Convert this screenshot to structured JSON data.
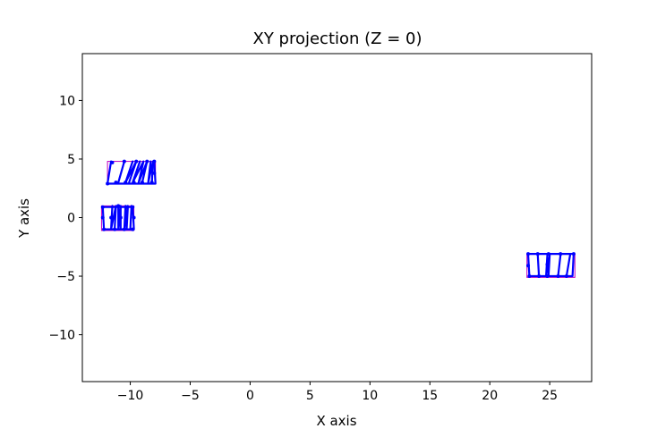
{
  "chart_data": {
    "type": "scatter",
    "title": "XY projection (Z = 0)",
    "xlabel": "X axis",
    "ylabel": "Y axis",
    "xlim": [
      -14,
      28.5
    ],
    "ylim": [
      -14,
      14
    ],
    "xticks": [
      -10,
      -5,
      0,
      5,
      10,
      15,
      20,
      25
    ],
    "yticks": [
      -10,
      -5,
      0,
      5,
      10
    ],
    "grid": false,
    "colors": {
      "points": "#0000ff",
      "box": "#bf00bf",
      "axes": "#000000"
    },
    "boxes": [
      {
        "x0": -11.9,
        "x1": -7.9,
        "y0": 2.9,
        "y1": 4.8
      },
      {
        "x0": -12.4,
        "x1": -9.7,
        "y0": -1.1,
        "y1": 1.0
      },
      {
        "x0": 23.1,
        "x1": 27.1,
        "y0": -5.1,
        "y1": -3.1
      }
    ],
    "strokes": [
      {
        "x": [
          -11.6,
          -11.9,
          -7.9,
          -8.0
        ],
        "y": [
          4.8,
          2.9,
          2.9,
          4.8
        ]
      },
      {
        "x": [
          -10.5,
          -11.0
        ],
        "y": [
          4.8,
          3.0
        ]
      },
      {
        "x": [
          -9.8,
          -10.4,
          -9.5,
          -10.1
        ],
        "y": [
          4.8,
          3.0,
          4.8,
          3.0
        ]
      },
      {
        "x": [
          -9.2,
          -9.8,
          -8.9,
          -9.3,
          -8.6,
          -9.0
        ],
        "y": [
          4.8,
          3.0,
          4.8,
          3.0,
          4.8,
          3.0
        ]
      },
      {
        "x": [
          -8.3,
          -8.5,
          -8.1,
          -8.2
        ],
        "y": [
          4.8,
          3.0,
          4.8,
          3.0
        ]
      },
      {
        "x": [
          -12.3,
          -12.2,
          -9.7,
          -9.8,
          -12.3
        ],
        "y": [
          0.9,
          -1.0,
          -1.0,
          0.9,
          0.9
        ]
      },
      {
        "x": [
          -11.5,
          -11.6,
          -11.2,
          -11.3
        ],
        "y": [
          1.0,
          -1.0,
          1.0,
          -1.0
        ]
      },
      {
        "x": [
          -11.0,
          -11.0,
          -10.8,
          -10.8
        ],
        "y": [
          1.0,
          -1.0,
          1.0,
          -1.0
        ]
      },
      {
        "x": [
          -10.4,
          -10.5,
          -10.2,
          -10.3
        ],
        "y": [
          1.0,
          -1.0,
          1.0,
          -1.0
        ]
      },
      {
        "x": [
          -9.9,
          -10.0
        ],
        "y": [
          1.0,
          -1.0
        ]
      },
      {
        "x": [
          23.2,
          27.0,
          26.9,
          23.3,
          23.2
        ],
        "y": [
          -3.1,
          -3.1,
          -5.0,
          -5.0,
          -3.1
        ]
      },
      {
        "x": [
          24.0,
          24.1
        ],
        "y": [
          -3.2,
          -5.0
        ]
      },
      {
        "x": [
          24.8,
          24.7,
          25.0,
          24.9
        ],
        "y": [
          -3.2,
          -5.0,
          -3.2,
          -5.0
        ]
      },
      {
        "x": [
          25.9,
          25.7
        ],
        "y": [
          -3.2,
          -5.0
        ]
      },
      {
        "x": [
          26.7,
          26.4
        ],
        "y": [
          -3.2,
          -5.0
        ]
      }
    ],
    "points": [
      {
        "x": -11.9,
        "y": 2.9
      },
      {
        "x": -11.2,
        "y": 3.0
      },
      {
        "x": -10.4,
        "y": 3.0
      },
      {
        "x": -9.7,
        "y": 3.0
      },
      {
        "x": -9.0,
        "y": 3.0
      },
      {
        "x": -8.2,
        "y": 3.0
      },
      {
        "x": -11.5,
        "y": 4.7
      },
      {
        "x": -10.5,
        "y": 4.8
      },
      {
        "x": -9.5,
        "y": 4.8
      },
      {
        "x": -8.6,
        "y": 4.8
      },
      {
        "x": -8.0,
        "y": 4.8
      },
      {
        "x": -8.0,
        "y": 3.8
      },
      {
        "x": -12.3,
        "y": 0.9
      },
      {
        "x": -12.3,
        "y": 0.0
      },
      {
        "x": -12.2,
        "y": -1.0
      },
      {
        "x": -11.3,
        "y": -1.0
      },
      {
        "x": -10.5,
        "y": -1.0
      },
      {
        "x": -9.8,
        "y": -1.0
      },
      {
        "x": -9.7,
        "y": 0.0
      },
      {
        "x": -9.8,
        "y": 0.9
      },
      {
        "x": -11.0,
        "y": 1.0
      },
      {
        "x": -10.3,
        "y": 0.9
      },
      {
        "x": -11.6,
        "y": 0.0
      },
      {
        "x": -10.8,
        "y": 0.0
      },
      {
        "x": 23.2,
        "y": -3.1
      },
      {
        "x": 24.0,
        "y": -3.1
      },
      {
        "x": 24.9,
        "y": -3.1
      },
      {
        "x": 25.9,
        "y": -3.1
      },
      {
        "x": 27.0,
        "y": -3.1
      },
      {
        "x": 23.3,
        "y": -5.0
      },
      {
        "x": 24.1,
        "y": -5.0
      },
      {
        "x": 24.8,
        "y": -5.0
      },
      {
        "x": 25.7,
        "y": -5.0
      },
      {
        "x": 26.4,
        "y": -5.0
      },
      {
        "x": 23.2,
        "y": -4.1
      },
      {
        "x": 24.8,
        "y": -4.0
      }
    ]
  }
}
